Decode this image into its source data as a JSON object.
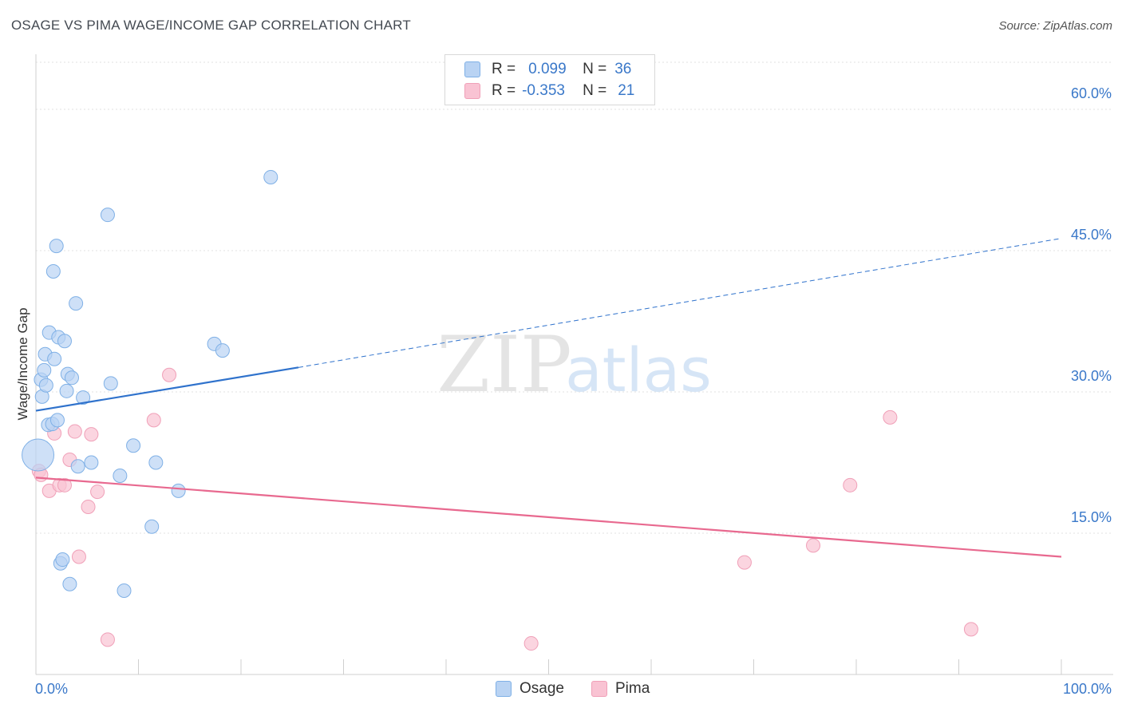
{
  "title": "OSAGE VS PIMA WAGE/INCOME GAP CORRELATION CHART",
  "source": "Source: ZipAtlas.com",
  "watermark": {
    "zip": "ZIP",
    "atlas": "atlas"
  },
  "legend": {
    "osage": {
      "r_label": "R =",
      "r_value": "0.099",
      "n_label": "N =",
      "n_value": "36"
    },
    "pima": {
      "r_label": "R =",
      "r_value": "-0.353",
      "n_label": "N =",
      "n_value": "21"
    }
  },
  "bottom_legend": {
    "osage": "Osage",
    "pima": "Pima"
  },
  "colors": {
    "osage_fill": "#b9d3f3",
    "osage_stroke": "#7fb0e6",
    "osage_line": "#2f72cc",
    "pima_fill": "#f9c3d3",
    "pima_stroke": "#f0a0b8",
    "pima_line": "#e8698f",
    "axis_text": "#3a78c9",
    "grid": "#e2e2e2"
  },
  "chart_data": {
    "type": "scatter",
    "title": "OSAGE VS PIMA WAGE/INCOME GAP CORRELATION CHART",
    "xlabel": "",
    "ylabel": "Wage/Income Gap",
    "xlim": [
      0,
      100
    ],
    "ylim": [
      0,
      65
    ],
    "x_tick_labels": [
      "0.0%",
      "100.0%"
    ],
    "y_ticks": [
      15,
      30,
      45,
      60
    ],
    "y_tick_labels": [
      "15.0%",
      "30.0%",
      "45.0%",
      "60.0%"
    ],
    "grid": true,
    "series": [
      {
        "name": "Osage",
        "r": 0.099,
        "n": 36,
        "points": [
          [
            0.2,
            23.3
          ],
          [
            0.5,
            31.3
          ],
          [
            0.6,
            29.5
          ],
          [
            0.8,
            32.3
          ],
          [
            0.9,
            34.0
          ],
          [
            1.0,
            30.7
          ],
          [
            1.2,
            26.5
          ],
          [
            1.3,
            36.3
          ],
          [
            1.6,
            26.6
          ],
          [
            1.7,
            42.8
          ],
          [
            1.8,
            33.5
          ],
          [
            2.0,
            45.5
          ],
          [
            2.1,
            27.0
          ],
          [
            2.2,
            35.8
          ],
          [
            2.4,
            11.8
          ],
          [
            2.6,
            12.2
          ],
          [
            2.8,
            35.4
          ],
          [
            3.0,
            30.1
          ],
          [
            3.1,
            31.9
          ],
          [
            3.3,
            9.6
          ],
          [
            3.5,
            31.5
          ],
          [
            3.9,
            39.4
          ],
          [
            4.1,
            22.1
          ],
          [
            4.6,
            29.4
          ],
          [
            5.4,
            22.5
          ],
          [
            7.0,
            48.8
          ],
          [
            7.3,
            30.9
          ],
          [
            8.2,
            21.1
          ],
          [
            8.6,
            8.9
          ],
          [
            9.5,
            24.3
          ],
          [
            11.3,
            15.7
          ],
          [
            11.7,
            22.5
          ],
          [
            13.9,
            19.5
          ],
          [
            17.4,
            35.1
          ],
          [
            18.2,
            34.4
          ],
          [
            22.9,
            52.8
          ]
        ],
        "trend": {
          "x": [
            0,
            25.6
          ],
          "y": [
            28.0,
            32.6
          ],
          "dashed_to": [
            100,
            46.3
          ]
        }
      },
      {
        "name": "Pima",
        "r": -0.353,
        "n": 21,
        "points": [
          [
            0.3,
            21.6
          ],
          [
            0.5,
            21.2
          ],
          [
            1.3,
            19.5
          ],
          [
            1.8,
            25.6
          ],
          [
            2.3,
            20.1
          ],
          [
            2.8,
            20.1
          ],
          [
            3.3,
            22.8
          ],
          [
            3.8,
            25.8
          ],
          [
            4.2,
            12.5
          ],
          [
            5.1,
            17.8
          ],
          [
            5.4,
            25.5
          ],
          [
            6.0,
            19.4
          ],
          [
            7.0,
            3.7
          ],
          [
            11.5,
            27.0
          ],
          [
            13.0,
            31.8
          ],
          [
            48.3,
            3.3
          ],
          [
            69.1,
            11.9
          ],
          [
            75.8,
            13.7
          ],
          [
            79.4,
            20.1
          ],
          [
            83.3,
            27.3
          ],
          [
            91.2,
            4.8
          ]
        ],
        "trend": {
          "x": [
            0,
            100
          ],
          "y": [
            20.9,
            12.5
          ]
        }
      }
    ]
  }
}
